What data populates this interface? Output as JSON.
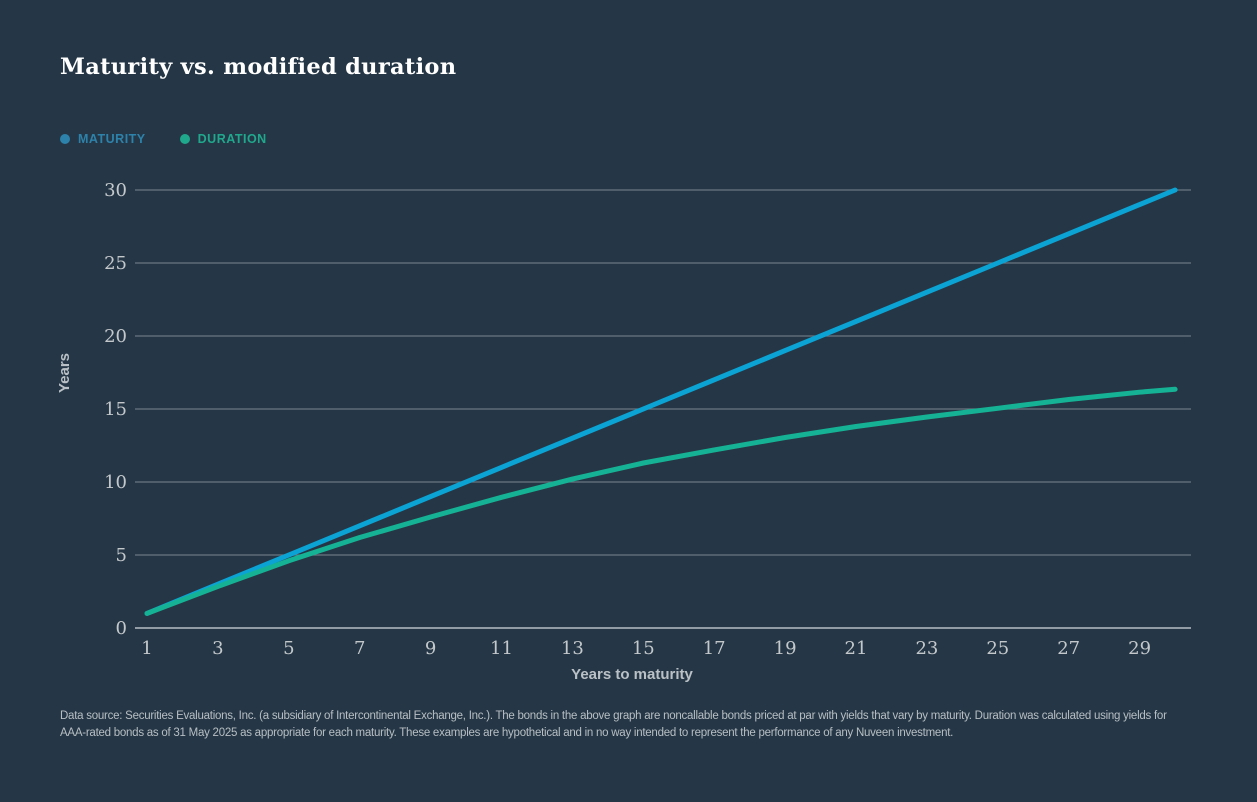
{
  "title": "Maturity vs. modified duration",
  "legend": [
    {
      "label": "MATURITY",
      "color": "#2d82ab"
    },
    {
      "label": "DURATION",
      "color": "#1fa88c"
    }
  ],
  "footnote": "Data source: Securities Evaluations, Inc. (a subsidiary of Intercontinental Exchange, Inc.). The bonds in the above graph are noncallable bonds priced at par with yields that vary by maturity. Duration was calculated using yields for AAA-rated bonds as of 31 May 2025 as appropriate for each maturity. These examples are hypothetical and in no way intended to represent the performance of any Nuveen investment.",
  "colors": {
    "background": "#253746",
    "title_text": "#ffffff",
    "axis_text": "#c4c8cb",
    "gridline": "#98a2aa",
    "maturity_line": "#0ba3d4",
    "duration_line": "#16b295"
  },
  "chart_data": {
    "type": "line",
    "title": "Maturity vs. modified duration",
    "xlabel": "Years to maturity",
    "ylabel": "Years",
    "x": [
      1,
      3,
      5,
      7,
      9,
      11,
      13,
      15,
      17,
      19,
      21,
      23,
      25,
      27,
      29,
      30
    ],
    "series": [
      {
        "name": "MATURITY",
        "color": "#0ba3d4",
        "values": [
          1,
          3,
          5,
          7,
          9,
          11,
          13,
          15,
          17,
          19,
          21,
          23,
          25,
          27,
          29,
          30
        ]
      },
      {
        "name": "DURATION",
        "color": "#16b295",
        "values": [
          1.0,
          2.85,
          4.6,
          6.2,
          7.6,
          8.95,
          10.2,
          11.3,
          12.2,
          13.05,
          13.8,
          14.45,
          15.05,
          15.65,
          16.15,
          16.35
        ]
      }
    ],
    "xticks": [
      1,
      3,
      5,
      7,
      9,
      11,
      13,
      15,
      17,
      19,
      21,
      23,
      25,
      27,
      29
    ],
    "yticks": [
      0,
      5,
      10,
      15,
      20,
      25,
      30
    ],
    "xlim": [
      1,
      30
    ],
    "ylim": [
      0,
      30
    ],
    "grid": true,
    "legend_position": "top-left"
  }
}
